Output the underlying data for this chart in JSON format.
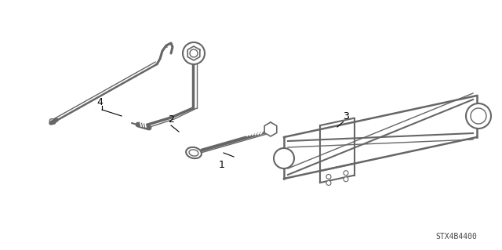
{
  "background_color": "#ffffff",
  "line_color": "#666666",
  "text_color": "#000000",
  "watermark": "STX4B4400",
  "fig_width": 6.4,
  "fig_height": 3.19,
  "dpi": 100
}
